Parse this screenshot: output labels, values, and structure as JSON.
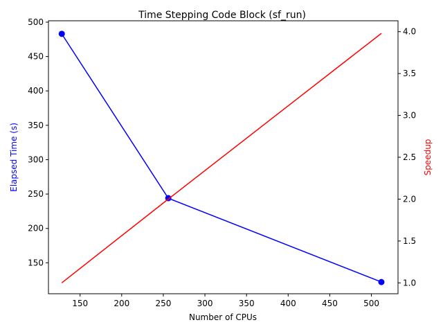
{
  "chart_data": {
    "type": "line",
    "title": "Time Stepping Code Block (sf_run)",
    "xlabel": "Number of CPUs",
    "ylabel": "Elapsed Time (s)",
    "ylabel_right": "Speedup",
    "x": [
      128,
      256,
      512
    ],
    "xlim": [
      112,
      532
    ],
    "ylim": [
      105,
      502
    ],
    "ylim_right": [
      0.87,
      4.13
    ],
    "x_ticks": [
      "150",
      "200",
      "250",
      "300",
      "350",
      "400",
      "450",
      "500"
    ],
    "y_ticks": [
      "150",
      "200",
      "250",
      "300",
      "350",
      "400",
      "450",
      "500"
    ],
    "y_ticks_right": [
      "1.0",
      "1.5",
      "2.0",
      "2.5",
      "3.0",
      "3.5",
      "4.0"
    ],
    "grid": false,
    "series": [
      {
        "axis": "left",
        "values": [
          483,
          244,
          122
        ],
        "color": "#0000ff",
        "marker": "circle"
      },
      {
        "axis": "right",
        "values": [
          1.0,
          2.0,
          3.98
        ],
        "color": "#ff0000",
        "marker": "none"
      }
    ]
  }
}
